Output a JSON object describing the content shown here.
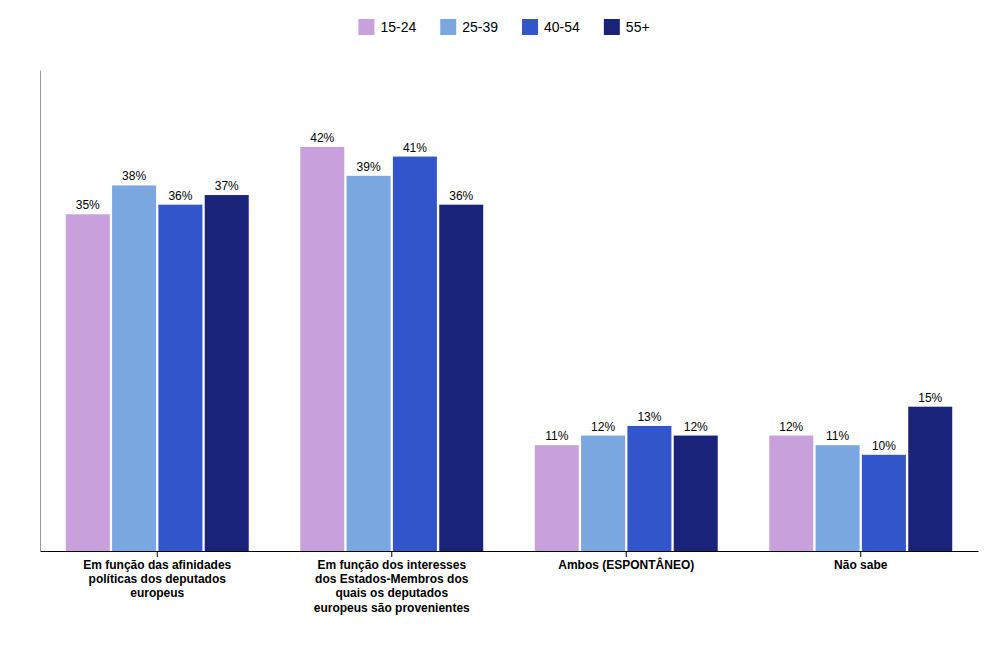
{
  "chart_data": {
    "type": "bar",
    "categories": [
      "Em função das afinidades\npolíticas dos deputados\neuropeus",
      "Em função dos interesses\ndos Estados-Membros dos\nquais os deputados\neuropeus são provenientes",
      "Ambos (ESPONTÂNEO)",
      "Não sabe"
    ],
    "series": [
      {
        "name": "15-24",
        "color": "#C8A0DC",
        "values": [
          35,
          42,
          11,
          12
        ],
        "value_labels": [
          "35%",
          "42%",
          "11%",
          "12%"
        ]
      },
      {
        "name": "25-39",
        "color": "#7BA7E0",
        "values": [
          38,
          39,
          12,
          11
        ],
        "value_labels": [
          "38%",
          "39%",
          "12%",
          "11%"
        ]
      },
      {
        "name": "40-54",
        "color": "#3355CC",
        "values": [
          36,
          41,
          13,
          10
        ],
        "value_labels": [
          "36%",
          "41%",
          "13%",
          "10%"
        ]
      },
      {
        "name": "55+",
        "color": "#1A237A",
        "values": [
          37,
          36,
          12,
          15
        ],
        "value_labels": [
          "37%",
          "36%",
          "12%",
          "15%"
        ]
      }
    ],
    "ylim": [
      0,
      50
    ],
    "grid": false,
    "legend": "top",
    "data_labels": true,
    "tick_labels": "x"
  }
}
